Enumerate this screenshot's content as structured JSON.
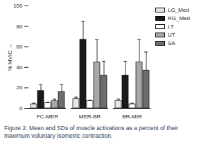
{
  "chart_data": {
    "type": "bar",
    "caption": "Figure 2. Mean and SDs of muscle activations as a percent of their maximum voluntary isometric contraction.",
    "y_label": "% MVIC",
    "categories": [
      "FC-MER",
      "MER-BR",
      "BR-MIR"
    ],
    "series": [
      {
        "name": "LG_Med",
        "color": "#e6e6e6",
        "values": [
          4,
          9,
          7
        ],
        "sd": [
          1,
          2,
          2
        ]
      },
      {
        "name": "RG_Med",
        "color": "#1a1a1a",
        "values": [
          17,
          67,
          32
        ],
        "sd": [
          6,
          18,
          14
        ]
      },
      {
        "name": "LT",
        "color": "#ffffff",
        "values": [
          5,
          7,
          4
        ],
        "sd": [
          1,
          1,
          1
        ]
      },
      {
        "name": "UT",
        "color": "#a8a8a8",
        "values": [
          7,
          45,
          45
        ],
        "sd": [
          2,
          22,
          22
        ]
      },
      {
        "name": "SA",
        "color": "#6e6e6e",
        "values": [
          16,
          32,
          37
        ],
        "sd": [
          7,
          14,
          18
        ]
      }
    ],
    "ylim": [
      0,
      100
    ],
    "yticks": [
      0,
      20,
      40,
      60,
      80,
      100
    ],
    "legend": "right",
    "grid": false
  }
}
